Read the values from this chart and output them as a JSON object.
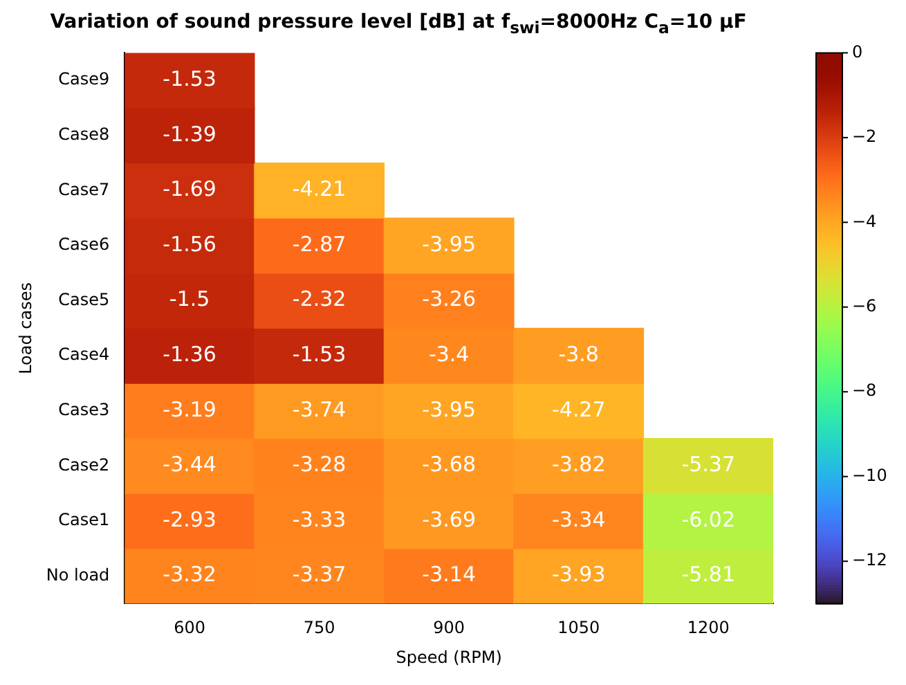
{
  "chart_data": {
    "type": "heatmap",
    "title": "Variation of sound pressure level [dB] at f$_{swi}$=8000Hz C$_{a}$=10 μF",
    "xlabel": "Speed (RPM)",
    "ylabel": "Load cases",
    "categories": [
      "600",
      "750",
      "900",
      "1050",
      "1200"
    ],
    "y_categories": [
      "Case9",
      "Case8",
      "Case7",
      "Case6",
      "Case5",
      "Case4",
      "Case3",
      "Case2",
      "Case1",
      "No load"
    ],
    "cells": [
      [
        -1.53,
        null,
        null,
        null,
        null
      ],
      [
        -1.39,
        null,
        null,
        null,
        null
      ],
      [
        -1.69,
        -4.21,
        null,
        null,
        null
      ],
      [
        -1.56,
        -2.87,
        -3.95,
        null,
        null
      ],
      [
        -1.5,
        -2.32,
        -3.26,
        null,
        null
      ],
      [
        -1.36,
        -1.53,
        -3.4,
        -3.8,
        null
      ],
      [
        -3.19,
        -3.74,
        -3.95,
        -4.27,
        null
      ],
      [
        -3.44,
        -3.28,
        -3.68,
        -3.82,
        -5.37
      ],
      [
        -2.93,
        -3.33,
        -3.69,
        -3.34,
        -6.02
      ],
      [
        -3.32,
        -3.37,
        -3.14,
        -3.93,
        -5.81
      ]
    ],
    "clim": [
      -13,
      0
    ],
    "cticks": [
      {
        "value": -12,
        "label": "−12"
      },
      {
        "value": -10,
        "label": "−10"
      },
      {
        "value": -8,
        "label": "−8"
      },
      {
        "value": -6,
        "label": "−6"
      },
      {
        "value": -4,
        "label": "−4"
      },
      {
        "value": -2,
        "label": "−2"
      },
      0
    ],
    "data_labels": true
  }
}
